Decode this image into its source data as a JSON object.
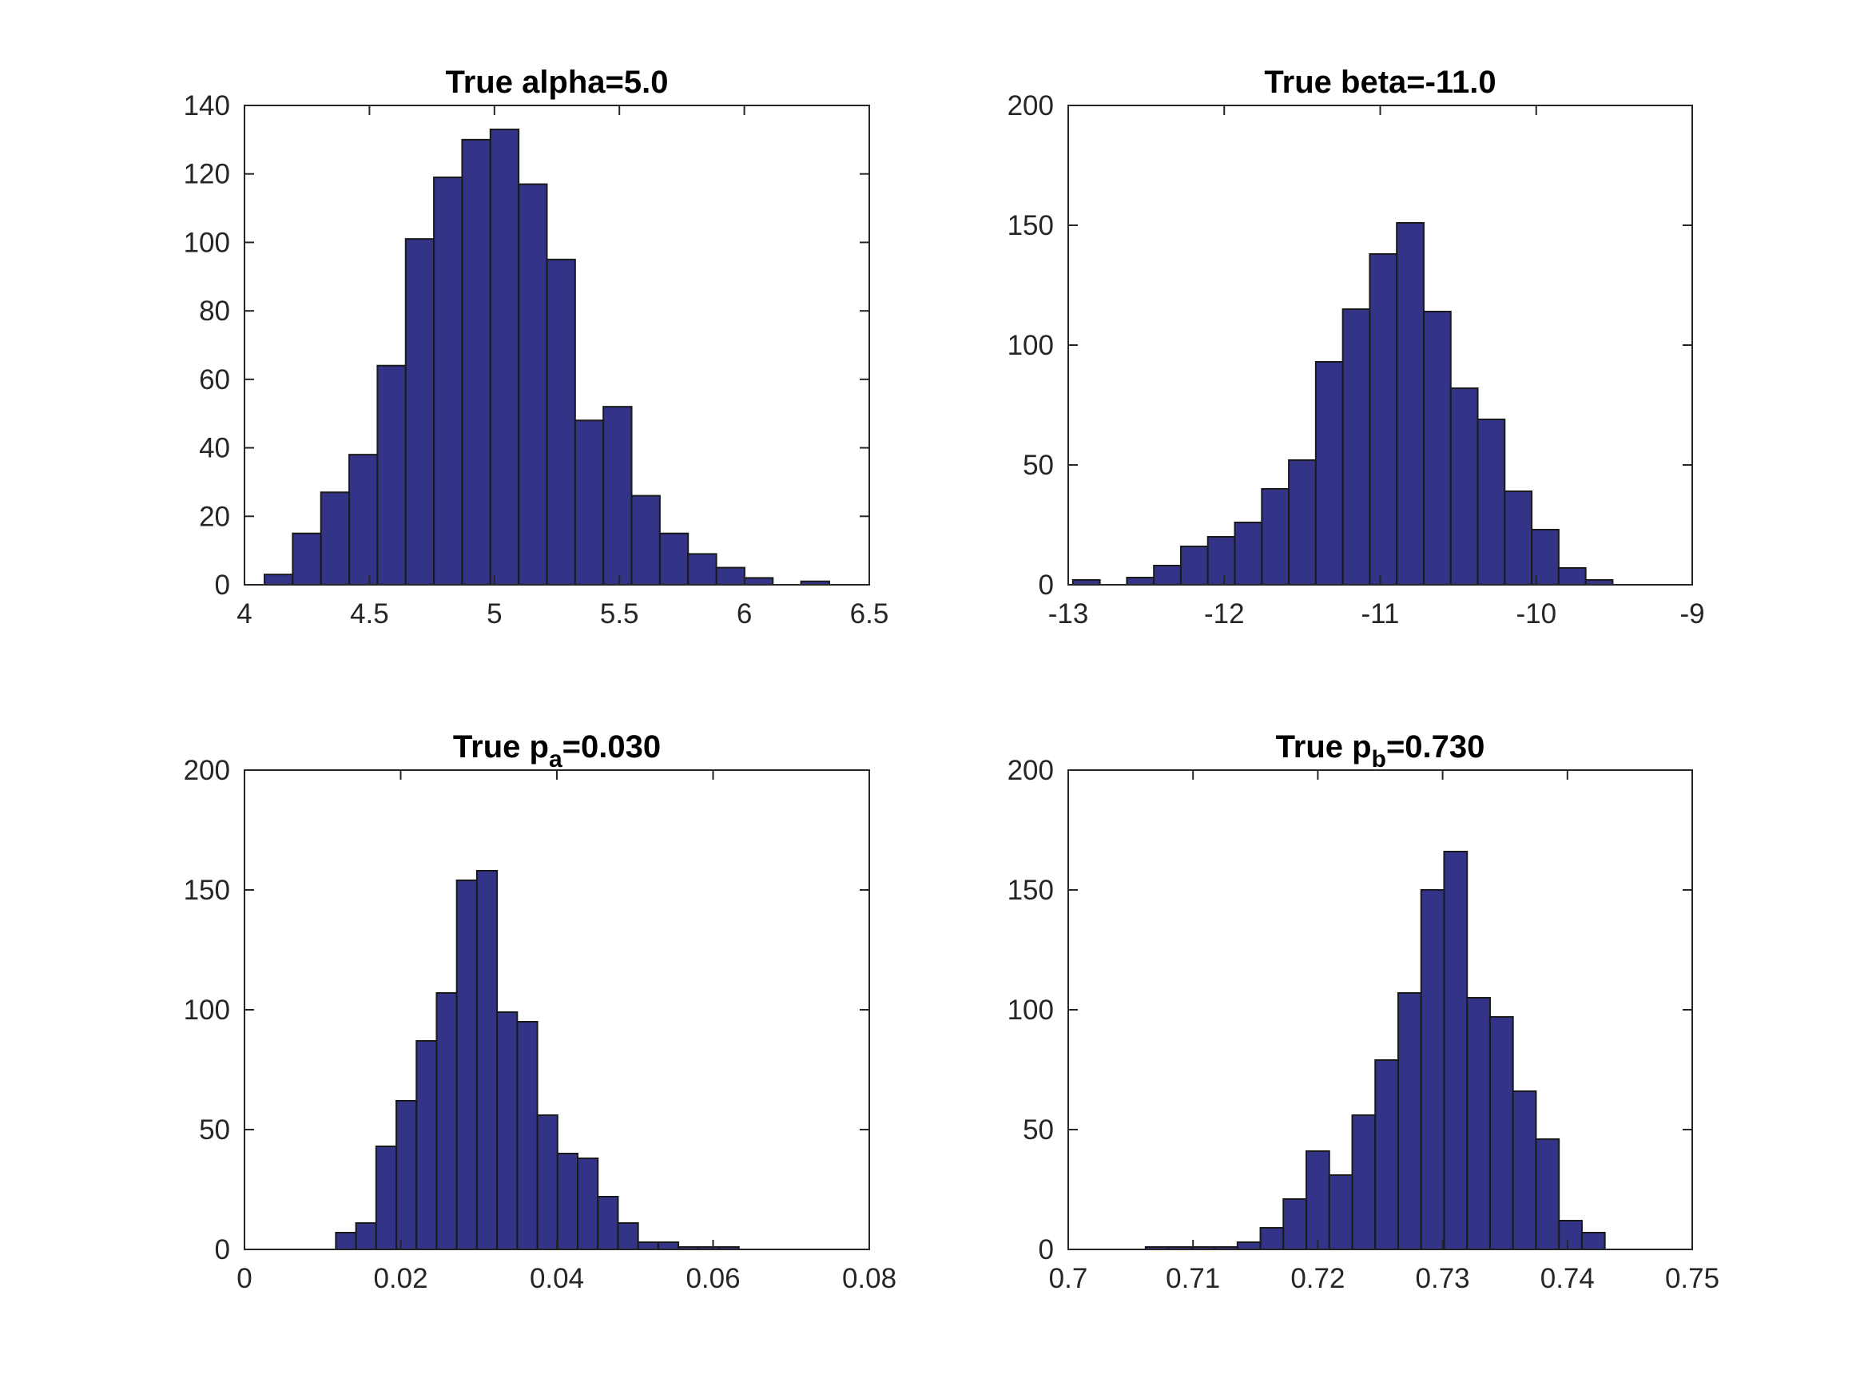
{
  "figure": {
    "bar_color": "#333388",
    "edge_color": "#1a1a1a",
    "axis_color": "#262626"
  },
  "chart_data": [
    {
      "type": "bar",
      "title": "True alpha=5.0",
      "xlim": [
        4,
        6.5
      ],
      "ylim": [
        0,
        140
      ],
      "xticks": [
        4,
        4.5,
        5,
        5.5,
        6,
        6.5
      ],
      "xtick_labels": [
        "4",
        "4.5",
        "5",
        "5.5",
        "6",
        "6.5"
      ],
      "yticks": [
        0,
        20,
        40,
        60,
        80,
        100,
        120,
        140
      ],
      "ytick_labels": [
        "0",
        "20",
        "40",
        "60",
        "80",
        "100",
        "120",
        "140"
      ],
      "bin_edges": [
        4.08,
        4.193,
        4.306,
        4.419,
        4.532,
        4.645,
        4.758,
        4.871,
        4.984,
        5.097,
        5.21,
        5.323,
        5.436,
        5.549,
        5.662,
        5.775,
        5.888,
        6.001,
        6.114,
        6.227,
        6.34
      ],
      "values": [
        3,
        15,
        27,
        38,
        64,
        101,
        119,
        130,
        133,
        117,
        95,
        48,
        52,
        26,
        15,
        9,
        5,
        2,
        0,
        1
      ]
    },
    {
      "type": "bar",
      "title": "True beta=-11.0",
      "xlim": [
        -13,
        -9
      ],
      "ylim": [
        0,
        200
      ],
      "xticks": [
        -13,
        -12,
        -11,
        -10,
        -9
      ],
      "xtick_labels": [
        "-13",
        "-12",
        "-11",
        "-10",
        "-9"
      ],
      "yticks": [
        0,
        50,
        100,
        150,
        200
      ],
      "ytick_labels": [
        "0",
        "50",
        "100",
        "150",
        "200"
      ],
      "bin_edges": [
        -12.97,
        -12.797,
        -12.624,
        -12.451,
        -12.278,
        -12.105,
        -11.932,
        -11.759,
        -11.586,
        -11.413,
        -11.24,
        -11.067,
        -10.894,
        -10.721,
        -10.548,
        -10.375,
        -10.202,
        -10.029,
        -9.856,
        -9.683,
        -9.51
      ],
      "values": [
        2,
        0,
        3,
        8,
        16,
        20,
        26,
        40,
        52,
        93,
        115,
        138,
        151,
        114,
        82,
        69,
        39,
        23,
        7,
        2
      ]
    },
    {
      "type": "bar",
      "title_main": "True p",
      "title_sub": "a",
      "title_suffix": "=0.030",
      "xlim": [
        0,
        0.08
      ],
      "ylim": [
        0,
        200
      ],
      "xticks": [
        0,
        0.02,
        0.04,
        0.06,
        0.08
      ],
      "xtick_labels": [
        "0",
        "0.02",
        "0.04",
        "0.06",
        "0.08"
      ],
      "yticks": [
        0,
        50,
        100,
        150,
        200
      ],
      "ytick_labels": [
        "0",
        "50",
        "100",
        "150",
        "200"
      ],
      "bin_edges": [
        0.0117,
        0.01428,
        0.01686,
        0.01944,
        0.02202,
        0.0246,
        0.02718,
        0.02976,
        0.03234,
        0.03492,
        0.0375,
        0.04008,
        0.04266,
        0.04524,
        0.04782,
        0.0504,
        0.05298,
        0.05556,
        0.05814,
        0.06072,
        0.0633
      ],
      "values": [
        7,
        11,
        43,
        62,
        87,
        107,
        154,
        158,
        99,
        95,
        56,
        40,
        38,
        22,
        11,
        3,
        3,
        1,
        1,
        1
      ]
    },
    {
      "type": "bar",
      "title_main": "True p",
      "title_sub": "b",
      "title_suffix": "=0.730",
      "xlim": [
        0.7,
        0.75
      ],
      "ylim": [
        0,
        200
      ],
      "xticks": [
        0.7,
        0.71,
        0.72,
        0.73,
        0.74,
        0.75
      ],
      "xtick_labels": [
        "0.7",
        "0.71",
        "0.72",
        "0.73",
        "0.74",
        "0.75"
      ],
      "yticks": [
        0,
        50,
        100,
        150,
        200
      ],
      "ytick_labels": [
        "0",
        "50",
        "100",
        "150",
        "200"
      ],
      "bin_edges": [
        0.7062,
        0.70804,
        0.70988,
        0.71172,
        0.71356,
        0.7154,
        0.71724,
        0.71908,
        0.72092,
        0.72276,
        0.7246,
        0.72644,
        0.72828,
        0.73012,
        0.73196,
        0.7338,
        0.73564,
        0.73748,
        0.73932,
        0.74116,
        0.743
      ],
      "values": [
        1,
        1,
        1,
        1,
        3,
        9,
        21,
        41,
        31,
        56,
        79,
        107,
        150,
        166,
        105,
        97,
        66,
        46,
        12,
        7
      ]
    }
  ]
}
